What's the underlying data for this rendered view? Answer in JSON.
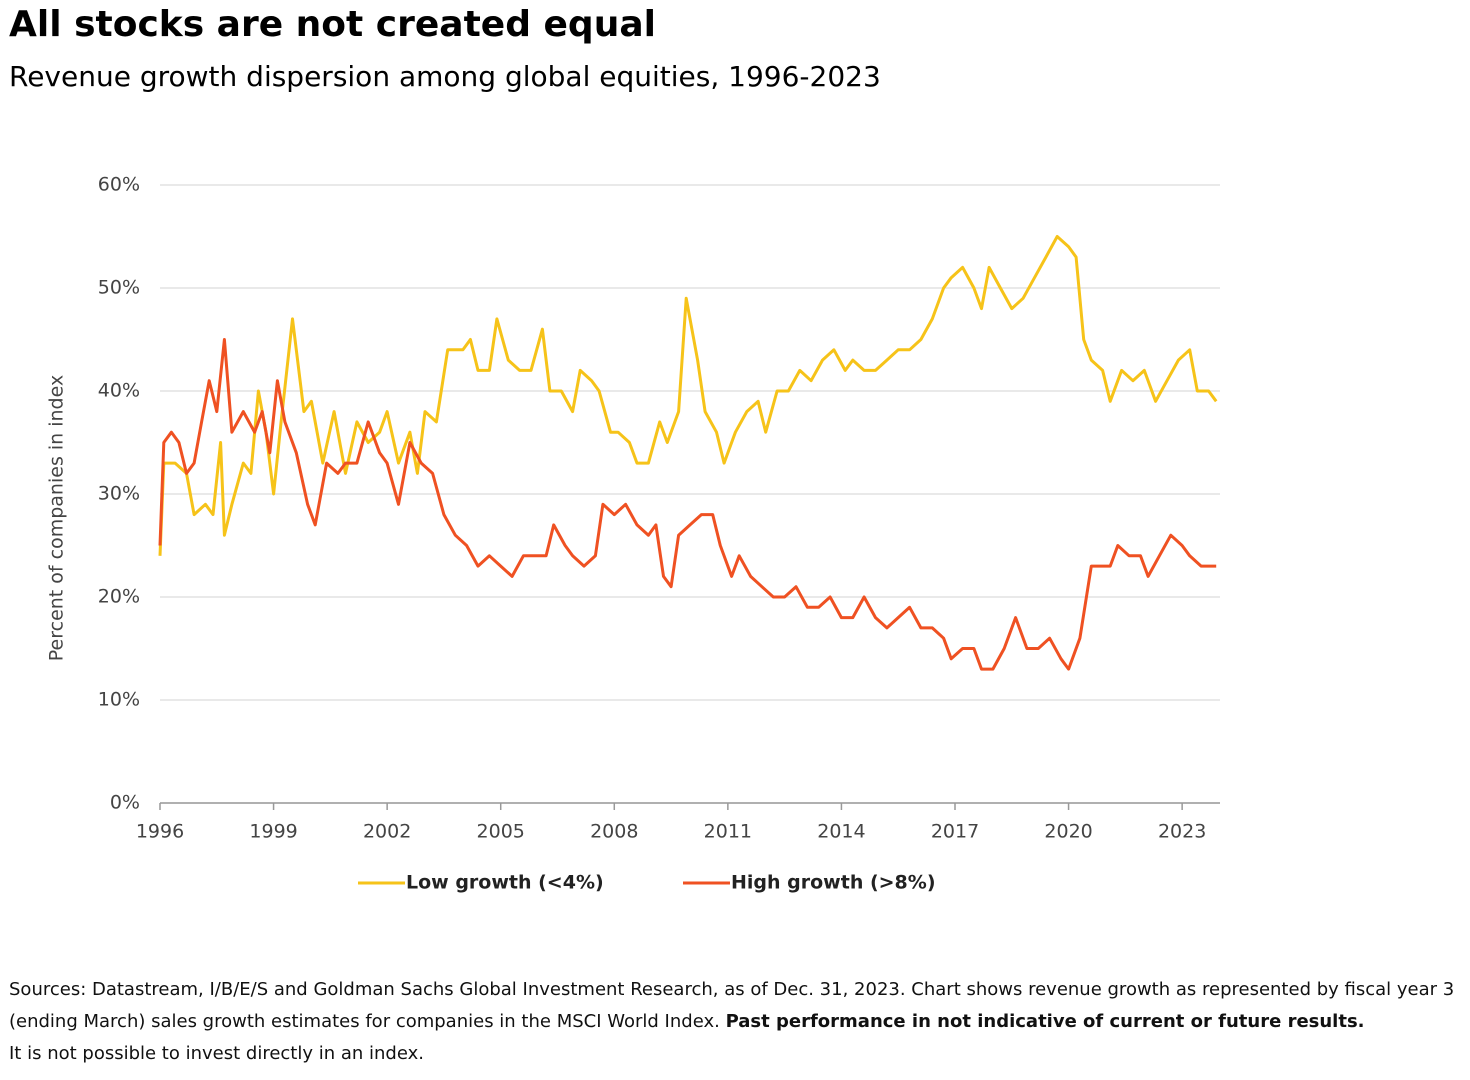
{
  "chart_data": {
    "type": "line",
    "title": "All stocks are not created equal",
    "subtitle": "Revenue growth dispersion among global equities, 1996-2023",
    "y_label": "Percent of companies in index",
    "xlim": [
      1996,
      2024
    ],
    "xticks": [
      1996,
      1999,
      2002,
      2005,
      2008,
      2011,
      2014,
      2017,
      2020,
      2023
    ],
    "ylim": [
      0,
      60
    ],
    "yticks": [
      {
        "value": 0,
        "label": "0%"
      },
      {
        "value": 10,
        "label": "10%"
      },
      {
        "value": 20,
        "label": "20%"
      },
      {
        "value": 30,
        "label": "30%"
      },
      {
        "value": 40,
        "label": "40%"
      },
      {
        "value": 50,
        "label": "50%"
      },
      {
        "value": 60,
        "label": "60%"
      }
    ],
    "grid": true,
    "legend": "bottom",
    "series": [
      {
        "name": "Low growth (<4%)",
        "color": "#f6c319",
        "x": [
          1996.0,
          1996.1,
          1996.4,
          1996.7,
          1996.9,
          1997.2,
          1997.4,
          1997.6,
          1997.7,
          1997.9,
          1998.2,
          1998.4,
          1998.6,
          1998.8,
          1999.0,
          1999.2,
          1999.5,
          1999.8,
          2000.0,
          2000.3,
          2000.6,
          2000.9,
          2001.2,
          2001.5,
          2001.8,
          2002.0,
          2002.3,
          2002.6,
          2002.8,
          2003.0,
          2003.3,
          2003.6,
          2004.0,
          2004.2,
          2004.4,
          2004.7,
          2004.9,
          2005.2,
          2005.5,
          2005.8,
          2006.1,
          2006.3,
          2006.6,
          2006.9,
          2007.1,
          2007.4,
          2007.6,
          2007.9,
          2008.1,
          2008.4,
          2008.6,
          2008.9,
          2009.2,
          2009.4,
          2009.7,
          2009.9,
          2010.2,
          2010.4,
          2010.7,
          2010.9,
          2011.2,
          2011.5,
          2011.8,
          2012.0,
          2012.3,
          2012.6,
          2012.9,
          2013.2,
          2013.5,
          2013.8,
          2014.1,
          2014.3,
          2014.6,
          2014.9,
          2015.2,
          2015.5,
          2015.8,
          2016.1,
          2016.4,
          2016.7,
          2016.9,
          2017.2,
          2017.5,
          2017.7,
          2017.9,
          2018.2,
          2018.5,
          2018.8,
          2019.1,
          2019.4,
          2019.7,
          2020.0,
          2020.2,
          2020.4,
          2020.6,
          2020.9,
          2021.1,
          2021.4,
          2021.7,
          2022.0,
          2022.3,
          2022.6,
          2022.9,
          2023.2,
          2023.4,
          2023.7,
          2023.9
        ],
        "values": [
          24,
          33,
          33,
          32,
          28,
          29,
          28,
          35,
          26,
          29,
          33,
          32,
          40,
          36,
          30,
          37,
          47,
          38,
          39,
          33,
          38,
          32,
          37,
          35,
          36,
          38,
          33,
          36,
          32,
          38,
          37,
          44,
          44,
          45,
          42,
          42,
          47,
          43,
          42,
          42,
          46,
          40,
          40,
          38,
          42,
          41,
          40,
          36,
          36,
          35,
          33,
          33,
          37,
          35,
          38,
          49,
          43,
          38,
          36,
          33,
          36,
          38,
          39,
          36,
          40,
          40,
          42,
          41,
          43,
          44,
          42,
          43,
          42,
          42,
          43,
          44,
          44,
          45,
          47,
          50,
          51,
          52,
          50,
          48,
          52,
          50,
          48,
          49,
          51,
          53,
          55,
          54,
          53,
          45,
          43,
          42,
          39,
          42,
          41,
          42,
          39,
          41,
          43,
          44,
          40,
          40,
          39
        ]
      },
      {
        "name": "High growth (>8%)",
        "color": "#ef5122",
        "x": [
          1996.0,
          1996.1,
          1996.3,
          1996.5,
          1996.7,
          1996.9,
          1997.1,
          1997.3,
          1997.5,
          1997.7,
          1997.9,
          1998.2,
          1998.5,
          1998.7,
          1998.9,
          1999.1,
          1999.3,
          1999.6,
          1999.9,
          2000.1,
          2000.4,
          2000.7,
          2000.9,
          2001.2,
          2001.5,
          2001.8,
          2002.0,
          2002.3,
          2002.6,
          2002.9,
          2003.2,
          2003.5,
          2003.8,
          2004.1,
          2004.4,
          2004.7,
          2005.0,
          2005.3,
          2005.6,
          2005.9,
          2006.2,
          2006.4,
          2006.7,
          2006.9,
          2007.2,
          2007.5,
          2007.7,
          2008.0,
          2008.3,
          2008.6,
          2008.9,
          2009.1,
          2009.3,
          2009.5,
          2009.7,
          2010.0,
          2010.3,
          2010.6,
          2010.8,
          2011.1,
          2011.3,
          2011.6,
          2011.9,
          2012.2,
          2012.5,
          2012.8,
          2013.1,
          2013.4,
          2013.7,
          2014.0,
          2014.3,
          2014.6,
          2014.9,
          2015.2,
          2015.5,
          2015.8,
          2016.1,
          2016.4,
          2016.7,
          2016.9,
          2017.2,
          2017.5,
          2017.7,
          2018.0,
          2018.3,
          2018.6,
          2018.9,
          2019.2,
          2019.5,
          2019.8,
          2020.0,
          2020.3,
          2020.6,
          2020.9,
          2021.1,
          2021.3,
          2021.6,
          2021.9,
          2022.1,
          2022.4,
          2022.7,
          2023.0,
          2023.2,
          2023.5,
          2023.7,
          2023.9
        ],
        "values": [
          25,
          35,
          36,
          35,
          32,
          33,
          37,
          41,
          38,
          45,
          36,
          38,
          36,
          38,
          34,
          41,
          37,
          34,
          29,
          27,
          33,
          32,
          33,
          33,
          37,
          34,
          33,
          29,
          35,
          33,
          32,
          28,
          26,
          25,
          23,
          24,
          23,
          22,
          24,
          24,
          24,
          27,
          25,
          24,
          23,
          24,
          29,
          28,
          29,
          27,
          26,
          27,
          22,
          21,
          26,
          27,
          28,
          28,
          25,
          22,
          24,
          22,
          21,
          20,
          20,
          21,
          19,
          19,
          20,
          18,
          18,
          20,
          18,
          17,
          18,
          19,
          17,
          17,
          16,
          14,
          15,
          15,
          13,
          13,
          15,
          18,
          15,
          15,
          16,
          14,
          13,
          16,
          23,
          23,
          23,
          25,
          24,
          24,
          22,
          24,
          26,
          25,
          24,
          23,
          23,
          23
        ]
      }
    ]
  },
  "footnote": {
    "text": "Sources: Datastream, I/B/E/S and Goldman Sachs Global Investment Research, as of Dec. 31, 2023. Chart shows revenue growth as represented by fiscal year 3 (ending March) sales growth estimates for companies in the MSCI World Index.",
    "emphasis": "Past performance in not indicative of current or future results.",
    "after": "It is not possible to invest directly in an index."
  }
}
